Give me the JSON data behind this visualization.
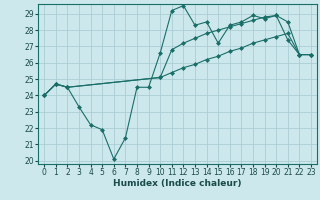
{
  "xlabel": "Humidex (Indice chaleur)",
  "bg_color": "#cce8ec",
  "grid_color": "#aacdd4",
  "line_color": "#1a6e68",
  "xlim": [
    -0.5,
    23.5
  ],
  "ylim": [
    19.8,
    29.6
  ],
  "yticks": [
    20,
    21,
    22,
    23,
    24,
    25,
    26,
    27,
    28,
    29
  ],
  "xticks": [
    0,
    1,
    2,
    3,
    4,
    5,
    6,
    7,
    8,
    9,
    10,
    11,
    12,
    13,
    14,
    15,
    16,
    17,
    18,
    19,
    20,
    21,
    22,
    23
  ],
  "series": [
    {
      "x": [
        0,
        1,
        2,
        3,
        4,
        5,
        6,
        7,
        8,
        9,
        10,
        11,
        12,
        13,
        14,
        15,
        16,
        17,
        18,
        19,
        20,
        21,
        22,
        23
      ],
      "y": [
        24.0,
        24.7,
        24.5,
        23.3,
        22.2,
        21.9,
        20.1,
        21.4,
        24.5,
        24.5,
        26.6,
        29.2,
        29.5,
        28.3,
        28.5,
        27.2,
        28.3,
        28.5,
        28.9,
        28.7,
        28.9,
        27.4,
        26.5,
        26.5
      ]
    },
    {
      "x": [
        0,
        1,
        2,
        10,
        11,
        12,
        13,
        14,
        15,
        16,
        17,
        18,
        19,
        20,
        21,
        22,
        23
      ],
      "y": [
        24.0,
        24.7,
        24.5,
        25.1,
        26.8,
        27.2,
        27.5,
        27.8,
        28.0,
        28.2,
        28.4,
        28.6,
        28.8,
        28.9,
        28.5,
        26.5,
        26.5
      ]
    },
    {
      "x": [
        0,
        1,
        2,
        10,
        11,
        12,
        13,
        14,
        15,
        16,
        17,
        18,
        19,
        20,
        21,
        22,
        23
      ],
      "y": [
        24.0,
        24.7,
        24.5,
        25.1,
        25.4,
        25.7,
        25.9,
        26.2,
        26.4,
        26.7,
        26.9,
        27.2,
        27.4,
        27.6,
        27.8,
        26.5,
        26.5
      ]
    }
  ]
}
